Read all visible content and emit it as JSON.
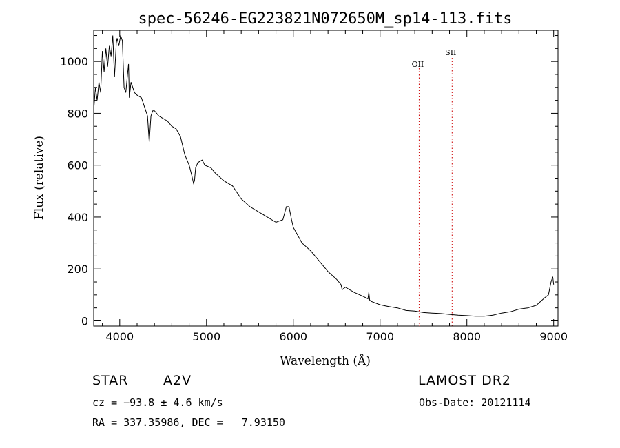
{
  "chart_data": {
    "type": "line",
    "title": "spec-56246-EG223821N072650M_sp14-113.fits",
    "xlabel": "Wavelength (Å)",
    "ylabel": "Flux (relative)",
    "xlim": [
      3700,
      9050
    ],
    "ylim": [
      -20,
      1120
    ],
    "xticks": [
      4000,
      5000,
      6000,
      7000,
      8000,
      9000
    ],
    "yticks": [
      0,
      200,
      400,
      600,
      800,
      1000
    ],
    "grid": false,
    "series": [
      {
        "color": "#000000",
        "x": [
          3700,
          3720,
          3740,
          3760,
          3780,
          3800,
          3820,
          3840,
          3860,
          3880,
          3900,
          3920,
          3940,
          3960,
          3970,
          3990,
          4010,
          4030,
          4050,
          4070,
          4090,
          4102,
          4110,
          4130,
          4150,
          4170,
          4200,
          4250,
          4300,
          4320,
          4340,
          4360,
          4380,
          4400,
          4450,
          4500,
          4550,
          4600,
          4650,
          4700,
          4750,
          4800,
          4830,
          4850,
          4861,
          4875,
          4900,
          4950,
          4980,
          5050,
          5100,
          5200,
          5300,
          5400,
          5500,
          5600,
          5700,
          5800,
          5880,
          5920,
          5950,
          5980,
          6000,
          6050,
          6100,
          6200,
          6300,
          6400,
          6500,
          6550,
          6563,
          6600,
          6700,
          6800,
          6860,
          6870,
          6880,
          6900,
          7000,
          7100,
          7200,
          7300,
          7400,
          7500,
          7600,
          7700,
          7800,
          7900,
          8000,
          8100,
          8200,
          8300,
          8400,
          8500,
          8600,
          8700,
          8800,
          8900,
          8940,
          8970,
          8990,
          9000
        ],
        "y": [
          810,
          900,
          850,
          920,
          880,
          1040,
          960,
          1050,
          980,
          1060,
          1020,
          1100,
          940,
          1070,
          1090,
          1060,
          1100,
          1080,
          900,
          880,
          950,
          990,
          860,
          920,
          900,
          880,
          870,
          860,
          810,
          790,
          690,
          790,
          810,
          810,
          790,
          780,
          770,
          750,
          740,
          710,
          640,
          600,
          560,
          530,
          540,
          590,
          610,
          620,
          600,
          590,
          570,
          540,
          520,
          470,
          440,
          420,
          400,
          380,
          390,
          440,
          440,
          390,
          360,
          330,
          300,
          270,
          230,
          190,
          160,
          140,
          120,
          130,
          110,
          95,
          85,
          110,
          80,
          75,
          62,
          55,
          50,
          40,
          38,
          32,
          30,
          28,
          25,
          22,
          20,
          18,
          18,
          22,
          30,
          35,
          45,
          50,
          60,
          90,
          100,
          150,
          170,
          140
        ]
      }
    ],
    "markers": [
      {
        "label": "OII",
        "x": 7450,
        "color": "#cc0000"
      },
      {
        "label": "SII",
        "x": 7830,
        "color": "#cc0000"
      }
    ]
  },
  "info": {
    "object_type": "STAR",
    "subclass": "A2V",
    "survey": "LAMOST DR2",
    "redshift": "cz = −93.8 ± 4.6 km/s",
    "obs_date": "Obs-Date: 20121114",
    "coords": "RA = 337.35986, DEC =   7.93150"
  }
}
